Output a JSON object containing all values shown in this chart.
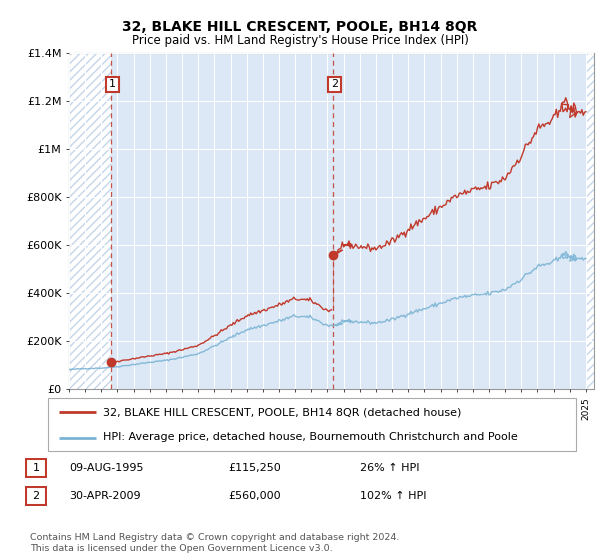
{
  "title": "32, BLAKE HILL CRESCENT, POOLE, BH14 8QR",
  "subtitle": "Price paid vs. HM Land Registry's House Price Index (HPI)",
  "legend_line1": "32, BLAKE HILL CRESCENT, POOLE, BH14 8QR (detached house)",
  "legend_line2": "HPI: Average price, detached house, Bournemouth Christchurch and Poole",
  "footnote": "Contains HM Land Registry data © Crown copyright and database right 2024.\nThis data is licensed under the Open Government Licence v3.0.",
  "annotation1_label": "1",
  "annotation1_date": "09-AUG-1995",
  "annotation1_price": "£115,250",
  "annotation1_hpi": "26% ↑ HPI",
  "annotation2_label": "2",
  "annotation2_date": "30-APR-2009",
  "annotation2_price": "£560,000",
  "annotation2_hpi": "102% ↑ HPI",
  "hpi_color": "#7ab3d4",
  "price_color": "#c0392b",
  "annotation_color": "#c0392b",
  "plot_bg_color": "#dce8f5",
  "hatch_color": "#c5d5e8",
  "ylim": [
    0,
    1400000
  ],
  "yticks": [
    0,
    200000,
    400000,
    600000,
    800000,
    1000000,
    1200000,
    1400000
  ],
  "ytick_labels": [
    "£0",
    "£200K",
    "£400K",
    "£600K",
    "£800K",
    "£1M",
    "£1.2M",
    "£1.4M"
  ],
  "sale1_x": 1995.6,
  "sale1_y": 115250,
  "sale2_x": 2009.33,
  "sale2_y": 560000,
  "xmin": 1993.0,
  "xmax": 2025.5,
  "hatch_left_end": 1995.6,
  "hatch_right_start": 2025.0
}
